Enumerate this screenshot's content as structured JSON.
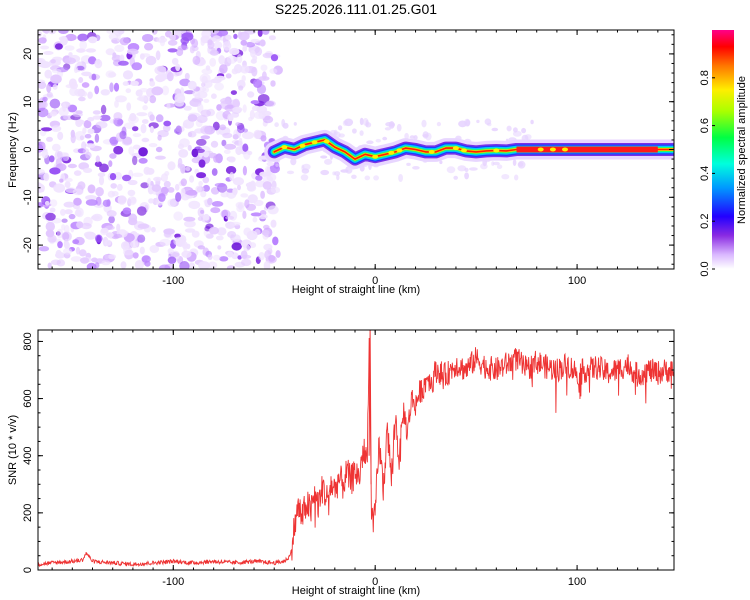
{
  "title": "S225.2026.111.01.25.G01",
  "chart_data": [
    {
      "type": "heatmap",
      "name": "spectrogram",
      "xlabel": "Height of straight line (km)",
      "ylabel": "Frequency (Hz)",
      "xlim": [
        -167,
        148
      ],
      "ylim": [
        -25,
        25
      ],
      "xticks": [
        -100,
        0,
        100
      ],
      "xtick_labels": [
        "-100",
        "0",
        "100"
      ],
      "yticks": [
        -20,
        -10,
        0,
        10,
        20
      ],
      "ytick_labels": [
        "-20",
        "-10",
        "0",
        "10",
        "20"
      ],
      "noise_region_x": [
        -167,
        -50
      ],
      "ridge": {
        "x": [
          -50,
          -45,
          -40,
          -35,
          -30,
          -25,
          -20,
          -15,
          -10,
          -5,
          0,
          5,
          10,
          15,
          20,
          25,
          30,
          35,
          40,
          45,
          50,
          55,
          60,
          65,
          70,
          80,
          90,
          100,
          110,
          120,
          130,
          140,
          148
        ],
        "y": [
          -0.5,
          0.5,
          0,
          1,
          1.5,
          2,
          0.5,
          -0.5,
          -2,
          -1,
          -1.5,
          -1,
          -0.5,
          0.3,
          0,
          -0.5,
          -0.5,
          0.3,
          0.3,
          -0.3,
          -0.5,
          -0.3,
          -0.2,
          -0.3,
          0,
          0,
          0,
          0,
          0,
          0,
          0,
          0,
          0
        ]
      },
      "colorbar": {
        "label": "Normalized spectral amplitude",
        "range": [
          0,
          1
        ],
        "ticks": [
          0.0,
          0.2,
          0.4,
          0.6,
          0.8
        ],
        "tick_labels": [
          "0.0",
          "0.2",
          "0.4",
          "0.6",
          "0.8"
        ],
        "colors": [
          "#ffffff",
          "#cc88ff",
          "#8800ff",
          "#0000ff",
          "#00ccff",
          "#00ff66",
          "#99ff00",
          "#ffff00",
          "#ff8800",
          "#ff0000",
          "#ff0088"
        ]
      }
    },
    {
      "type": "line",
      "name": "snr",
      "xlabel": "Height of straight line (km)",
      "ylabel": "SNR (10 * v/v)",
      "xlim": [
        -167,
        148
      ],
      "ylim": [
        0,
        840
      ],
      "xticks": [
        -100,
        0,
        100
      ],
      "xtick_labels": [
        "-100",
        "0",
        "100"
      ],
      "yticks": [
        0,
        200,
        400,
        600,
        800
      ],
      "ytick_labels": [
        "0",
        "200",
        "400",
        "600",
        "800"
      ],
      "color": "#ee3333",
      "series": [
        {
          "name": "SNR",
          "x": [
            -167,
            -160,
            -150,
            -145,
            -143,
            -140,
            -130,
            -120,
            -110,
            -100,
            -90,
            -80,
            -70,
            -60,
            -50,
            -45,
            -42,
            -40,
            -38,
            -36,
            -34,
            -32,
            -30,
            -28,
            -26,
            -24,
            -22,
            -20,
            -18,
            -16,
            -14,
            -12,
            -10,
            -8,
            -6,
            -4,
            -3,
            -2,
            -1,
            0,
            2,
            4,
            6,
            8,
            10,
            12,
            14,
            16,
            18,
            20,
            22,
            24,
            26,
            28,
            30,
            35,
            40,
            45,
            50,
            55,
            60,
            65,
            70,
            75,
            80,
            85,
            90,
            95,
            100,
            105,
            110,
            115,
            120,
            125,
            130,
            135,
            140,
            145,
            148
          ],
          "y": [
            20,
            25,
            30,
            35,
            60,
            30,
            25,
            20,
            25,
            30,
            25,
            30,
            25,
            30,
            25,
            30,
            50,
            150,
            220,
            180,
            240,
            200,
            260,
            230,
            290,
            250,
            300,
            280,
            320,
            300,
            340,
            310,
            350,
            320,
            420,
            380,
            800,
            300,
            130,
            200,
            450,
            280,
            500,
            320,
            540,
            380,
            560,
            480,
            600,
            580,
            620,
            640,
            680,
            650,
            700,
            680,
            720,
            700,
            740,
            710,
            700,
            720,
            740,
            700,
            730,
            710,
            700,
            720,
            690,
            700,
            710,
            690,
            700,
            720,
            680,
            700,
            690,
            700,
            690
          ]
        }
      ]
    }
  ]
}
